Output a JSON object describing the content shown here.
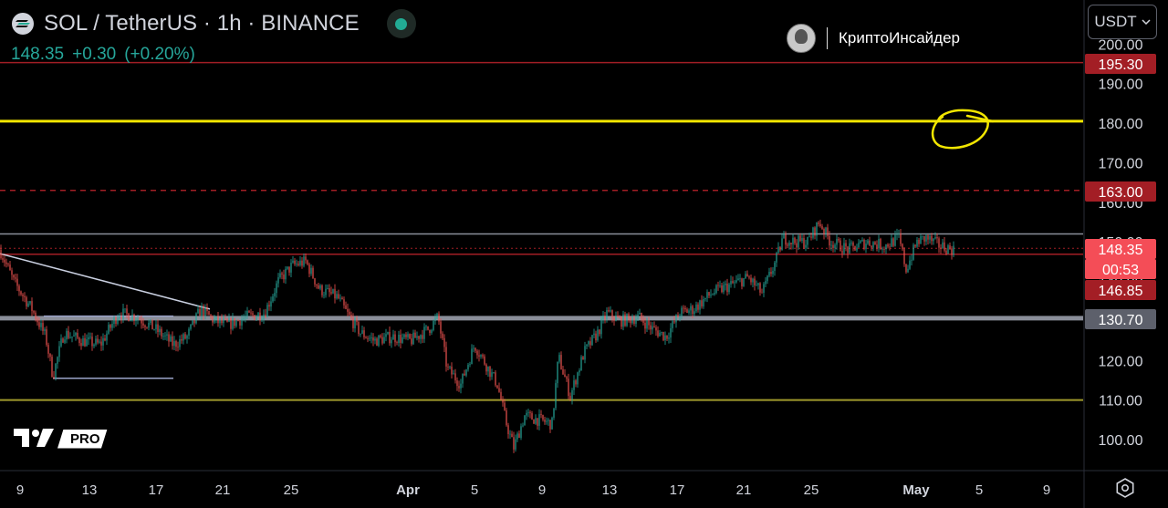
{
  "header": {
    "symbol_title": "SOL / TetherUS · 1h · BINANCE",
    "last_price": "148.35",
    "change": "+0.30",
    "change_pct": "(+0.20%)"
  },
  "channel": {
    "name": "КриптоИнсайдер"
  },
  "currency_button": "USDT",
  "logo": {
    "pro_label": "PRO"
  },
  "colors": {
    "background": "#000000",
    "up_candle": "#26a69a",
    "down_candle": "#ef5350",
    "price_text_green": "#26a69a",
    "yellow_level": "#f2e600",
    "olive_level": "#a09a2c",
    "red_level": "#a21e25",
    "grey_level": "#8a8e99",
    "label_red": "#a31e25",
    "label_pink": "#f44d57",
    "label_grey": "#5d606b"
  },
  "chart_data": {
    "type": "candlestick",
    "y_axis": {
      "ticks": [
        "100.00",
        "110.00",
        "120.00",
        "130.00",
        "140.00",
        "150.00",
        "160.00",
        "170.00",
        "180.00",
        "190.00",
        "200.00"
      ],
      "tick_values": [
        100,
        110,
        120,
        130,
        140,
        150,
        160,
        170,
        180,
        190,
        200
      ],
      "range": [
        96,
        206
      ]
    },
    "x_axis": {
      "ticks": [
        "9",
        "13",
        "17",
        "21",
        "25",
        "Apr",
        "5",
        "9",
        "13",
        "17",
        "21",
        "25",
        "May",
        "5",
        "9"
      ]
    },
    "price_labels": [
      {
        "text": "195.30",
        "value": 195.3,
        "style": "red"
      },
      {
        "text": "163.00",
        "value": 163.0,
        "style": "red"
      },
      {
        "text": "148.35",
        "value": 148.35,
        "style": "pink"
      },
      {
        "text": "00:53",
        "value": 148.35,
        "style": "pink-countdown"
      },
      {
        "text": "146.85",
        "value": 146.85,
        "style": "red"
      },
      {
        "text": "130.70",
        "value": 130.7,
        "style": "grey"
      }
    ],
    "horizontal_levels": [
      {
        "value": 195.3,
        "style": "red-solid"
      },
      {
        "value": 180.5,
        "style": "yellow-thick"
      },
      {
        "value": 163.0,
        "style": "red-dashed"
      },
      {
        "value": 152.0,
        "style": "grey-solid"
      },
      {
        "value": 148.35,
        "style": "red-dotted"
      },
      {
        "value": 146.85,
        "style": "red-solid"
      },
      {
        "value": 130.7,
        "style": "grey-thick"
      },
      {
        "value": 110.0,
        "style": "olive-solid"
      }
    ],
    "price_path": [
      [
        0,
        148
      ],
      [
        15,
        140
      ],
      [
        35,
        133
      ],
      [
        50,
        126
      ],
      [
        58,
        116
      ],
      [
        70,
        127
      ],
      [
        90,
        125
      ],
      [
        110,
        124
      ],
      [
        130,
        132
      ],
      [
        150,
        131
      ],
      [
        170,
        128
      ],
      [
        190,
        124
      ],
      [
        205,
        126
      ],
      [
        220,
        133
      ],
      [
        235,
        130
      ],
      [
        250,
        129
      ],
      [
        270,
        131
      ],
      [
        290,
        132
      ],
      [
        305,
        140
      ],
      [
        320,
        144
      ],
      [
        335,
        145
      ],
      [
        350,
        138
      ],
      [
        370,
        136
      ],
      [
        380,
        132
      ],
      [
        395,
        127
      ],
      [
        410,
        125
      ],
      [
        430,
        126
      ],
      [
        450,
        125
      ],
      [
        470,
        128
      ],
      [
        480,
        131
      ],
      [
        490,
        118
      ],
      [
        505,
        114
      ],
      [
        520,
        124
      ],
      [
        535,
        118
      ],
      [
        545,
        114
      ],
      [
        555,
        104
      ],
      [
        563,
        98
      ],
      [
        575,
        106
      ],
      [
        590,
        105
      ],
      [
        605,
        104
      ],
      [
        612,
        121
      ],
      [
        625,
        111
      ],
      [
        640,
        122
      ],
      [
        655,
        127
      ],
      [
        665,
        132
      ],
      [
        680,
        130
      ],
      [
        700,
        131
      ],
      [
        715,
        128
      ],
      [
        730,
        126
      ],
      [
        745,
        132
      ],
      [
        760,
        133
      ],
      [
        780,
        137
      ],
      [
        800,
        139
      ],
      [
        820,
        141
      ],
      [
        835,
        137
      ],
      [
        850,
        145
      ],
      [
        858,
        151
      ],
      [
        870,
        150
      ],
      [
        885,
        150
      ],
      [
        898,
        155
      ],
      [
        910,
        150
      ],
      [
        930,
        148
      ],
      [
        950,
        150
      ],
      [
        970,
        149
      ],
      [
        985,
        151
      ],
      [
        993,
        143
      ],
      [
        1005,
        150
      ],
      [
        1015,
        151
      ],
      [
        1030,
        149
      ],
      [
        1045,
        148
      ]
    ]
  }
}
